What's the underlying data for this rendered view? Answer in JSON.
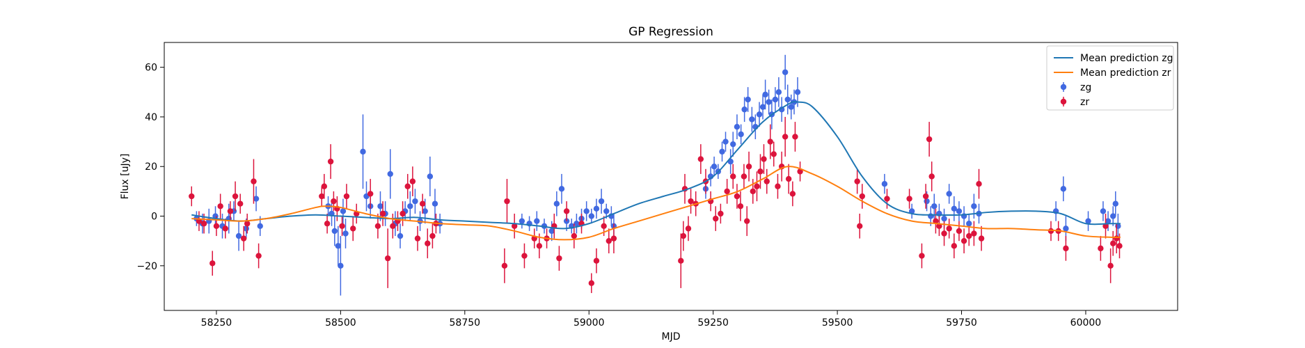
{
  "chart_data": {
    "type": "scatter",
    "title": "GP Regression",
    "xlabel": "MJD",
    "ylabel": "Flux [uJy]",
    "xlim": [
      58145,
      60185
    ],
    "ylim": [
      -38,
      70
    ],
    "x_ticks": [
      58250,
      58500,
      58750,
      59000,
      59250,
      59500,
      59750,
      60000
    ],
    "y_ticks": [
      -20,
      0,
      20,
      40,
      60
    ],
    "grid": false,
    "legend_position": "top-right",
    "series": [
      {
        "name": "Mean prediction zg",
        "kind": "line",
        "color": "#1f77b4",
        "x": [
          58200,
          58250,
          58300,
          58350,
          58400,
          58450,
          58500,
          58550,
          58600,
          58650,
          58700,
          58750,
          58800,
          58850,
          58900,
          58950,
          59000,
          59050,
          59100,
          59150,
          59200,
          59250,
          59300,
          59350,
          59400,
          59420,
          59450,
          59500,
          59550,
          59600,
          59650,
          59700,
          59750,
          59800,
          59850,
          59900,
          59950,
          60000,
          60050,
          60070
        ],
        "y": [
          0.5,
          -1,
          -2,
          -1,
          0,
          0.5,
          0,
          -0.5,
          -1,
          -0.5,
          -1.5,
          -2,
          -2.5,
          -3,
          -4,
          -5,
          -3,
          1,
          5,
          8,
          11,
          16,
          27,
          38,
          45,
          46,
          44,
          32,
          16,
          5,
          1,
          0.5,
          0.5,
          1.5,
          2,
          2,
          1,
          -3,
          -3,
          -3
        ]
      },
      {
        "name": "Mean prediction zr",
        "kind": "line",
        "color": "#ff7f0e",
        "x": [
          58200,
          58250,
          58300,
          58350,
          58400,
          58450,
          58470,
          58500,
          58550,
          58600,
          58650,
          58700,
          58750,
          58800,
          58850,
          58900,
          58950,
          59000,
          59050,
          59100,
          59150,
          59200,
          59250,
          59300,
          59350,
          59400,
          59450,
          59500,
          59550,
          59600,
          59650,
          59700,
          59750,
          59800,
          59850,
          59900,
          59950,
          60000,
          60050,
          60070
        ],
        "y": [
          -1,
          -1.5,
          -2,
          -1,
          1,
          3.5,
          4,
          3.5,
          1,
          -1,
          -2,
          -3,
          -3.5,
          -4,
          -6,
          -8.5,
          -9.5,
          -8.5,
          -5,
          -2,
          1,
          4,
          7,
          10,
          15,
          20,
          17,
          12,
          6,
          1,
          -2,
          -3,
          -4,
          -5,
          -5,
          -5.5,
          -6,
          -8,
          -8.5,
          -8.5
        ]
      },
      {
        "name": "zg",
        "kind": "scatter-errorbar",
        "color": "#4169e1",
        "points": [
          [
            58210,
            -1,
            3
          ],
          [
            58222,
            -3,
            4
          ],
          [
            58235,
            -2,
            5
          ],
          [
            58248,
            0,
            4
          ],
          [
            58262,
            -4,
            5
          ],
          [
            58275,
            -1,
            6
          ],
          [
            58285,
            2,
            4
          ],
          [
            58295,
            -8,
            6
          ],
          [
            58310,
            -5,
            4
          ],
          [
            58330,
            7,
            5
          ],
          [
            58338,
            -4,
            4
          ],
          [
            58475,
            4,
            4
          ],
          [
            58482,
            1,
            5
          ],
          [
            58488,
            -6,
            6
          ],
          [
            58495,
            -12,
            8
          ],
          [
            58500,
            -20,
            12
          ],
          [
            58505,
            2,
            5
          ],
          [
            58510,
            -7,
            6
          ],
          [
            58545,
            26,
            15
          ],
          [
            58552,
            8,
            6
          ],
          [
            58560,
            4,
            5
          ],
          [
            58580,
            4,
            6
          ],
          [
            58590,
            1,
            5
          ],
          [
            58600,
            17,
            10
          ],
          [
            58610,
            -3,
            5
          ],
          [
            58620,
            -8,
            5
          ],
          [
            58630,
            2,
            4
          ],
          [
            58640,
            4,
            6
          ],
          [
            58650,
            6,
            5
          ],
          [
            58660,
            -2,
            4
          ],
          [
            58670,
            2,
            5
          ],
          [
            58680,
            16,
            8
          ],
          [
            58690,
            5,
            6
          ],
          [
            58700,
            -3,
            4
          ],
          [
            58865,
            -2,
            3
          ],
          [
            58880,
            -3,
            3
          ],
          [
            58895,
            -2,
            4
          ],
          [
            58910,
            -4,
            3
          ],
          [
            58925,
            -6,
            4
          ],
          [
            58935,
            5,
            5
          ],
          [
            58945,
            11,
            6
          ],
          [
            58955,
            -2,
            4
          ],
          [
            58965,
            -4,
            3
          ],
          [
            58975,
            -3,
            4
          ],
          [
            58985,
            -1,
            4
          ],
          [
            58995,
            2,
            4
          ],
          [
            59005,
            0,
            3
          ],
          [
            59015,
            3,
            4
          ],
          [
            59025,
            6,
            5
          ],
          [
            59035,
            2,
            3
          ],
          [
            59045,
            0,
            4
          ],
          [
            59050,
            -4,
            5
          ],
          [
            59235,
            11,
            4
          ],
          [
            59245,
            16,
            4
          ],
          [
            59252,
            20,
            4
          ],
          [
            59260,
            18,
            3
          ],
          [
            59268,
            26,
            4
          ],
          [
            59275,
            30,
            4
          ],
          [
            59285,
            22,
            5
          ],
          [
            59290,
            29,
            5
          ],
          [
            59298,
            36,
            5
          ],
          [
            59306,
            33,
            4
          ],
          [
            59313,
            43,
            5
          ],
          [
            59320,
            47,
            5
          ],
          [
            59328,
            39,
            5
          ],
          [
            59335,
            36,
            5
          ],
          [
            59343,
            41,
            5
          ],
          [
            59350,
            44,
            5
          ],
          [
            59355,
            49,
            6
          ],
          [
            59362,
            46,
            5
          ],
          [
            59368,
            41,
            6
          ],
          [
            59375,
            47,
            5
          ],
          [
            59382,
            50,
            6
          ],
          [
            59388,
            43,
            5
          ],
          [
            59395,
            58,
            7
          ],
          [
            59400,
            47,
            6
          ],
          [
            59407,
            44,
            5
          ],
          [
            59413,
            46,
            5
          ],
          [
            59420,
            50,
            6
          ],
          [
            59595,
            13,
            4
          ],
          [
            59650,
            2,
            3
          ],
          [
            59680,
            6,
            4
          ],
          [
            59688,
            0,
            4
          ],
          [
            59695,
            4,
            5
          ],
          [
            59705,
            1,
            4
          ],
          [
            59715,
            -1,
            4
          ],
          [
            59725,
            9,
            4
          ],
          [
            59735,
            3,
            5
          ],
          [
            59745,
            2,
            4
          ],
          [
            59755,
            0,
            4
          ],
          [
            59765,
            -3,
            4
          ],
          [
            59775,
            4,
            5
          ],
          [
            59785,
            1,
            4
          ],
          [
            59940,
            2,
            4
          ],
          [
            59955,
            11,
            5
          ],
          [
            59960,
            -5,
            5
          ],
          [
            60005,
            -2,
            4
          ],
          [
            60035,
            2,
            4
          ],
          [
            60045,
            -2,
            4
          ],
          [
            60055,
            0,
            4
          ],
          [
            60060,
            5,
            5
          ],
          [
            60065,
            -4,
            5
          ]
        ]
      },
      {
        "name": "zr",
        "kind": "scatter-errorbar",
        "color": "#dc143c",
        "points": [
          [
            58200,
            8,
            4
          ],
          [
            58215,
            -2,
            4
          ],
          [
            58225,
            -3,
            4
          ],
          [
            58242,
            -19,
            5
          ],
          [
            58250,
            -4,
            4
          ],
          [
            58258,
            4,
            5
          ],
          [
            58268,
            -5,
            4
          ],
          [
            58278,
            2,
            4
          ],
          [
            58288,
            8,
            6
          ],
          [
            58298,
            5,
            4
          ],
          [
            58305,
            -9,
            5
          ],
          [
            58312,
            -3,
            4
          ],
          [
            58325,
            14,
            9
          ],
          [
            58335,
            -16,
            5
          ],
          [
            58462,
            8,
            4
          ],
          [
            58467,
            12,
            5
          ],
          [
            58473,
            -3,
            4
          ],
          [
            58480,
            22,
            7
          ],
          [
            58486,
            6,
            4
          ],
          [
            58493,
            3,
            5
          ],
          [
            58503,
            -4,
            4
          ],
          [
            58512,
            8,
            5
          ],
          [
            58525,
            -5,
            5
          ],
          [
            58532,
            1,
            4
          ],
          [
            58560,
            9,
            6
          ],
          [
            58575,
            -4,
            5
          ],
          [
            58585,
            1,
            5
          ],
          [
            58595,
            -17,
            12
          ],
          [
            58605,
            -4,
            5
          ],
          [
            58615,
            -2,
            4
          ],
          [
            58625,
            1,
            5
          ],
          [
            58635,
            12,
            5
          ],
          [
            58645,
            14,
            6
          ],
          [
            58655,
            -9,
            5
          ],
          [
            58665,
            5,
            4
          ],
          [
            58675,
            -11,
            6
          ],
          [
            58685,
            -8,
            5
          ],
          [
            58692,
            -3,
            4
          ],
          [
            58830,
            -20,
            7
          ],
          [
            58835,
            6,
            9
          ],
          [
            58850,
            -4,
            5
          ],
          [
            58870,
            -16,
            5
          ],
          [
            58890,
            -9,
            4
          ],
          [
            58900,
            -12,
            5
          ],
          [
            58915,
            -9,
            4
          ],
          [
            58930,
            -4,
            5
          ],
          [
            58940,
            -17,
            5
          ],
          [
            58955,
            2,
            4
          ],
          [
            58970,
            -8,
            5
          ],
          [
            58985,
            -3,
            4
          ],
          [
            59005,
            -27,
            4
          ],
          [
            59015,
            -18,
            5
          ],
          [
            59030,
            -4,
            4
          ],
          [
            59040,
            -10,
            5
          ],
          [
            59050,
            -9,
            6
          ],
          [
            59185,
            -18,
            11
          ],
          [
            59190,
            -8,
            6
          ],
          [
            59193,
            11,
            6
          ],
          [
            59200,
            -5,
            5
          ],
          [
            59205,
            6,
            5
          ],
          [
            59215,
            5,
            5
          ],
          [
            59225,
            23,
            6
          ],
          [
            59235,
            14,
            5
          ],
          [
            59245,
            6,
            4
          ],
          [
            59255,
            -1,
            5
          ],
          [
            59265,
            1,
            4
          ],
          [
            59278,
            10,
            5
          ],
          [
            59290,
            16,
            5
          ],
          [
            59298,
            8,
            5
          ],
          [
            59305,
            4,
            6
          ],
          [
            59312,
            16,
            5
          ],
          [
            59318,
            -2,
            6
          ],
          [
            59322,
            20,
            6
          ],
          [
            59330,
            10,
            5
          ],
          [
            59338,
            12,
            6
          ],
          [
            59345,
            18,
            7
          ],
          [
            59352,
            23,
            6
          ],
          [
            59358,
            14,
            5
          ],
          [
            59365,
            30,
            7
          ],
          [
            59372,
            25,
            5
          ],
          [
            59380,
            12,
            5
          ],
          [
            59388,
            20,
            6
          ],
          [
            59395,
            32,
            8
          ],
          [
            59402,
            15,
            6
          ],
          [
            59410,
            9,
            5
          ],
          [
            59415,
            32,
            6
          ],
          [
            59425,
            18,
            4
          ],
          [
            59540,
            14,
            5
          ],
          [
            59545,
            -4,
            5
          ],
          [
            59550,
            8,
            5
          ],
          [
            59600,
            7,
            4
          ],
          [
            59645,
            7,
            4
          ],
          [
            59670,
            -16,
            5
          ],
          [
            59678,
            8,
            5
          ],
          [
            59685,
            31,
            7
          ],
          [
            59690,
            16,
            6
          ],
          [
            59698,
            -2,
            5
          ],
          [
            59705,
            -4,
            4
          ],
          [
            59715,
            -7,
            5
          ],
          [
            59725,
            -5,
            4
          ],
          [
            59735,
            -12,
            5
          ],
          [
            59745,
            -6,
            4
          ],
          [
            59755,
            -10,
            5
          ],
          [
            59765,
            -8,
            4
          ],
          [
            59775,
            -7,
            5
          ],
          [
            59785,
            13,
            6
          ],
          [
            59790,
            -9,
            5
          ],
          [
            59930,
            -6,
            4
          ],
          [
            59945,
            -6,
            4
          ],
          [
            59960,
            -13,
            5
          ],
          [
            60030,
            -13,
            5
          ],
          [
            60040,
            -4,
            5
          ],
          [
            60050,
            -20,
            7
          ],
          [
            60055,
            -11,
            5
          ],
          [
            60062,
            -9,
            6
          ],
          [
            60068,
            -12,
            5
          ]
        ]
      }
    ]
  }
}
